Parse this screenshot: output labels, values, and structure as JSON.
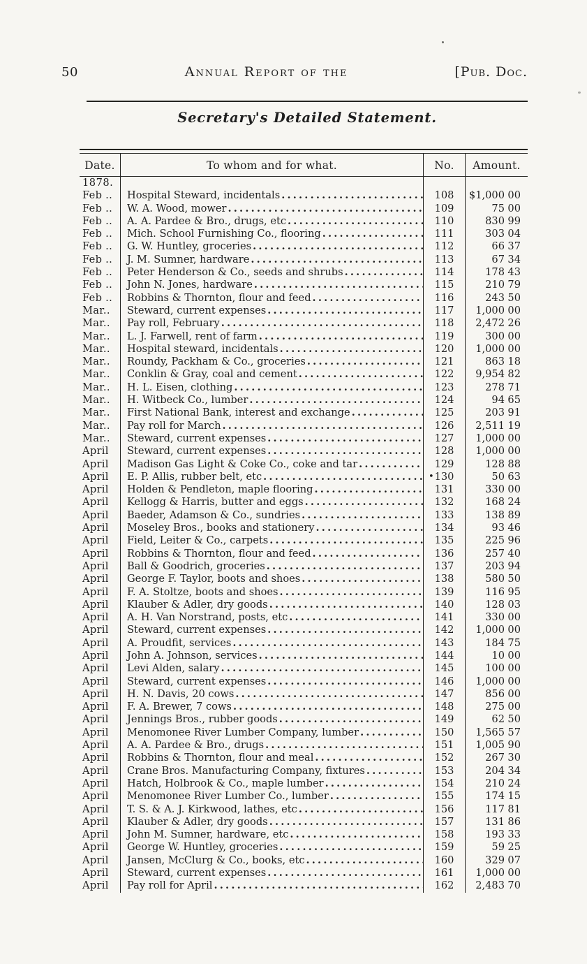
{
  "theme": {
    "paper_color": "#f7f6f2",
    "ink_color": "#1f1f1f"
  },
  "header": {
    "page_number": "50",
    "running_title": "Annual Report of the",
    "doc_label": "[Pub. Doc."
  },
  "section_title": "Secretary's Detailed Statement.",
  "table": {
    "headers": {
      "date": "Date.",
      "description": "To whom and for what.",
      "no": "No.",
      "amount": "Amount."
    },
    "year_label": "1878.",
    "rows": [
      {
        "date": "Feb ..",
        "desc": "Hospital Steward, incidentals",
        "no": "108",
        "dollars": "$1,000",
        "cents": "00"
      },
      {
        "date": "Feb ..",
        "desc": "W. A. Wood, mower",
        "no": "109",
        "dollars": "75",
        "cents": "00"
      },
      {
        "date": "Feb ..",
        "desc": "A. A. Pardee & Bro., drugs, etc",
        "no": "110",
        "dollars": "830",
        "cents": "99"
      },
      {
        "date": "Feb ..",
        "desc": "Mich. School Furnishing Co., flooring",
        "no": "111",
        "dollars": "303",
        "cents": "04"
      },
      {
        "date": "Feb ..",
        "desc": "G. W. Huntley, groceries",
        "no": "112",
        "dollars": "66",
        "cents": "37"
      },
      {
        "date": "Feb ..",
        "desc": "J. M. Sumner, hardware",
        "no": "113",
        "dollars": "67",
        "cents": "34"
      },
      {
        "date": "Feb ..",
        "desc": "Peter Henderson & Co., seeds and shrubs",
        "no": "114",
        "dollars": "178",
        "cents": "43"
      },
      {
        "date": "Feb ..",
        "desc": "John N. Jones, hardware",
        "no": "115",
        "dollars": "210",
        "cents": "79"
      },
      {
        "date": "Feb ..",
        "desc": "Robbins & Thornton, flour and feed",
        "no": "116",
        "dollars": "243",
        "cents": "50",
        "marker": "left"
      },
      {
        "date": "Mar..",
        "desc": "Steward, current expenses",
        "no": "117",
        "dollars": "1,000",
        "cents": "00"
      },
      {
        "date": "Mar..",
        "desc": "Pay roll, February",
        "no": "118",
        "dollars": "2,472",
        "cents": "26"
      },
      {
        "date": "Mar..",
        "desc": "L. J. Farwell, rent of farm",
        "no": "119",
        "dollars": "300",
        "cents": "00"
      },
      {
        "date": "Mar..",
        "desc": "Hospital steward, incidentals",
        "no": "120",
        "dollars": "1,000",
        "cents": "00"
      },
      {
        "date": "Mar..",
        "desc": "Roundy, Packham & Co., groceries",
        "no": "121",
        "dollars": "863",
        "cents": "18"
      },
      {
        "date": "Mar..",
        "desc": "Conklin & Gray, coal and cement",
        "no": "122",
        "dollars": "9,954",
        "cents": "82"
      },
      {
        "date": "Mar..",
        "desc": "H. L. Eisen, clothing",
        "no": "123",
        "dollars": "278",
        "cents": "71"
      },
      {
        "date": "Mar..",
        "desc": "H. Witbeck Co., lumber",
        "no": "124",
        "dollars": "94",
        "cents": "65"
      },
      {
        "date": "Mar..",
        "desc": "First National Bank, interest and exchange",
        "no": "125",
        "dollars": "203",
        "cents": "91"
      },
      {
        "date": "Mar..",
        "desc": "Pay roll for March",
        "no": "126",
        "dollars": "2,511",
        "cents": "19"
      },
      {
        "date": "Mar..",
        "desc": "Steward, current expenses",
        "no": "127",
        "dollars": "1,000",
        "cents": "00"
      },
      {
        "date": "April",
        "desc": "Steward, current expenses",
        "no": "128",
        "dollars": "1,000",
        "cents": "00"
      },
      {
        "date": "April",
        "desc": "Madison Gas Light & Coke Co., coke and tar",
        "no": "129",
        "dollars": "128",
        "cents": "88"
      },
      {
        "date": "April",
        "desc": "E. P. Allis, rubber belt, etc",
        "no": "130",
        "dollars": "50",
        "cents": "63",
        "marker": "no"
      },
      {
        "date": "April",
        "desc": "Holden & Pendleton, maple flooring",
        "no": "131",
        "dollars": "330",
        "cents": "00"
      },
      {
        "date": "April",
        "desc": "Kellogg & Harris, butter and eggs",
        "no": "132",
        "dollars": "168",
        "cents": "24"
      },
      {
        "date": "April",
        "desc": "Baeder, Adamson & Co., sundries",
        "no": "133",
        "dollars": "138",
        "cents": "89"
      },
      {
        "date": "April",
        "desc": "Moseley Bros., books and stationery",
        "no": "134",
        "dollars": "93",
        "cents": "46"
      },
      {
        "date": "April",
        "desc": "Field, Leiter & Co., carpets",
        "no": "135",
        "dollars": "225",
        "cents": "96"
      },
      {
        "date": "April",
        "desc": "Robbins & Thornton, flour and feed",
        "no": "136",
        "dollars": "257",
        "cents": "40"
      },
      {
        "date": "April",
        "desc": "Ball & Goodrich, groceries",
        "no": "137",
        "dollars": "203",
        "cents": "94"
      },
      {
        "date": "April",
        "desc": "George F. Taylor, boots and shoes",
        "no": "138",
        "dollars": "580",
        "cents": "50"
      },
      {
        "date": "April",
        "desc": "F. A. Stoltze, boots and shoes",
        "no": "139",
        "dollars": "116",
        "cents": "95"
      },
      {
        "date": "April",
        "desc": "Klauber & Adler, dry goods",
        "no": "140",
        "dollars": "128",
        "cents": "03"
      },
      {
        "date": "April",
        "desc": "A. H. Van Norstrand, posts, etc",
        "no": "141",
        "dollars": "330",
        "cents": "00"
      },
      {
        "date": "April",
        "desc": "Steward, current expenses",
        "no": "142",
        "dollars": "1,000",
        "cents": "00"
      },
      {
        "date": "April",
        "desc": "A. Proudfit, services",
        "no": "143",
        "dollars": "184",
        "cents": "75"
      },
      {
        "date": "April",
        "desc": "John A. Johnson, services",
        "no": "144",
        "dollars": "10",
        "cents": "00"
      },
      {
        "date": "April",
        "desc": "Levi Alden, salary",
        "no": "145",
        "dollars": "100",
        "cents": "00"
      },
      {
        "date": "April",
        "desc": "Steward, current expenses",
        "no": "146",
        "dollars": "1,000",
        "cents": "00"
      },
      {
        "date": "April",
        "desc": "H. N. Davis, 20 cows",
        "no": "147",
        "dollars": "856",
        "cents": "00"
      },
      {
        "date": "April",
        "desc": "F. A. Brewer, 7 cows",
        "no": "148",
        "dollars": "275",
        "cents": "00"
      },
      {
        "date": "April",
        "desc": "Jennings Bros., rubber goods",
        "no": "149",
        "dollars": "62",
        "cents": "50"
      },
      {
        "date": "April",
        "desc": "Menomonee River Lumber Company, lumber",
        "no": "150",
        "dollars": "1,565",
        "cents": "57"
      },
      {
        "date": "April",
        "desc": "A. A. Pardee & Bro., drugs",
        "no": "151",
        "dollars": "1,005",
        "cents": "90"
      },
      {
        "date": "April",
        "desc": "Robbins & Thornton, flour and meal",
        "no": "152",
        "dollars": "267",
        "cents": "30"
      },
      {
        "date": "April",
        "desc": "Crane Bros. Manufacturing Company, fixtures",
        "no": "153",
        "dollars": "204",
        "cents": "34"
      },
      {
        "date": "April",
        "desc": "Hatch, Holbrook & Co., maple lumber",
        "no": "154",
        "dollars": "210",
        "cents": "24"
      },
      {
        "date": "April",
        "desc": "Menomonee River Lumber Co., lumber",
        "no": "155",
        "dollars": "174",
        "cents": "15"
      },
      {
        "date": "April",
        "desc": "T. S. & A. J. Kirkwood, lathes, etc",
        "no": "156",
        "dollars": "117",
        "cents": "81"
      },
      {
        "date": "April",
        "desc": "Klauber & Adler, dry goods",
        "no": "157",
        "dollars": "131",
        "cents": "86"
      },
      {
        "date": "April",
        "desc": "John M. Sumner, hardware, etc",
        "no": "158",
        "dollars": "193",
        "cents": "33"
      },
      {
        "date": "April",
        "desc": "George W. Huntley, groceries",
        "no": "159",
        "dollars": "59",
        "cents": "25"
      },
      {
        "date": "April",
        "desc": "Jansen, McClurg & Co., books, etc",
        "no": "160",
        "dollars": "329",
        "cents": "07"
      },
      {
        "date": "April",
        "desc": "Steward, current expenses",
        "no": "161",
        "dollars": "1,000",
        "cents": "00"
      },
      {
        "date": "April",
        "desc": "Pay roll for April",
        "no": "162",
        "dollars": "2,483",
        "cents": "70"
      }
    ]
  }
}
